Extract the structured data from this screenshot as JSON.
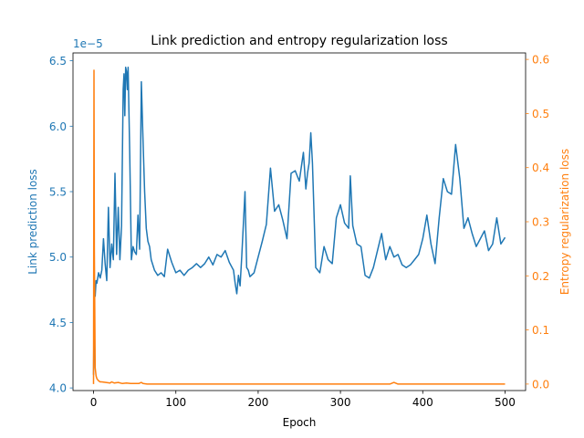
{
  "chart_data": {
    "type": "line",
    "title": "Link prediction and entropy regularization loss",
    "xlabel": "Epoch",
    "ylabel_left": "Link prediction loss",
    "ylabel_right": "Entropy regularization loss",
    "left_offset_label": "1e−5",
    "xlim": [
      -25,
      525
    ],
    "ylim_left": [
      3.98,
      6.56
    ],
    "ylim_right": [
      -0.012,
      0.612
    ],
    "xticks": [
      0,
      100,
      200,
      300,
      400,
      500
    ],
    "yticks_left": [
      4.0,
      4.5,
      5.0,
      5.5,
      6.0,
      6.5
    ],
    "yticks_left_labels": [
      "4.0",
      "4.5",
      "5.0",
      "5.5",
      "6.0",
      "6.5"
    ],
    "yticks_right": [
      0.0,
      0.1,
      0.2,
      0.3,
      0.4,
      0.5,
      0.6
    ],
    "yticks_right_labels": [
      "0.0",
      "0.1",
      "0.2",
      "0.3",
      "0.4",
      "0.5",
      "0.6"
    ],
    "grid": false,
    "colors": {
      "left": "#1f77b4",
      "right": "#ff7f0e"
    },
    "series": [
      {
        "axis": "left",
        "color": "#1f77b4",
        "x": [
          0,
          1,
          2,
          3,
          4,
          6,
          8,
          10,
          12,
          14,
          16,
          18,
          20,
          22,
          24,
          26,
          28,
          30,
          32,
          34,
          36,
          37,
          38,
          39,
          40,
          41,
          42,
          44,
          46,
          48,
          50,
          52,
          54,
          56,
          58,
          60,
          62,
          64,
          66,
          68,
          70,
          74,
          78,
          82,
          86,
          90,
          95,
          100,
          105,
          110,
          115,
          120,
          125,
          130,
          135,
          140,
          145,
          150,
          155,
          160,
          165,
          170,
          172,
          174,
          176,
          178,
          180,
          184,
          186,
          188,
          190,
          195,
          200,
          205,
          210,
          215,
          220,
          225,
          230,
          235,
          240,
          245,
          250,
          255,
          258,
          260,
          262,
          264,
          266,
          270,
          275,
          280,
          285,
          290,
          295,
          300,
          305,
          310,
          312,
          315,
          320,
          325,
          330,
          335,
          340,
          345,
          350,
          355,
          360,
          365,
          370,
          375,
          380,
          385,
          390,
          395,
          400,
          405,
          410,
          415,
          420,
          425,
          430,
          435,
          440,
          445,
          450,
          455,
          460,
          465,
          470,
          475,
          480,
          485,
          490,
          495,
          500
        ],
        "values": [
          4.1,
          4.8,
          4.7,
          4.82,
          4.8,
          4.88,
          4.84,
          4.9,
          5.14,
          4.95,
          4.82,
          5.38,
          4.92,
          5.1,
          4.98,
          5.64,
          5.02,
          5.38,
          4.98,
          5.24,
          6.28,
          6.4,
          6.08,
          6.45,
          6.42,
          6.28,
          6.45,
          5.78,
          4.98,
          5.08,
          5.04,
          5.02,
          5.32,
          5.06,
          6.34,
          5.9,
          5.5,
          5.22,
          5.12,
          5.08,
          4.98,
          4.9,
          4.86,
          4.88,
          4.85,
          5.06,
          4.96,
          4.88,
          4.9,
          4.86,
          4.9,
          4.92,
          4.95,
          4.92,
          4.95,
          5.0,
          4.94,
          5.02,
          5.0,
          5.05,
          4.96,
          4.9,
          4.8,
          4.72,
          4.86,
          4.78,
          5.0,
          5.5,
          4.92,
          4.9,
          4.85,
          4.88,
          5.0,
          5.12,
          5.25,
          5.68,
          5.35,
          5.4,
          5.28,
          5.14,
          5.64,
          5.66,
          5.58,
          5.8,
          5.52,
          5.64,
          5.72,
          5.95,
          5.72,
          4.92,
          4.88,
          5.08,
          4.98,
          4.95,
          5.3,
          5.4,
          5.26,
          5.22,
          5.62,
          5.24,
          5.1,
          5.08,
          4.86,
          4.84,
          4.92,
          5.05,
          5.18,
          4.98,
          5.08,
          5.0,
          5.02,
          4.94,
          4.92,
          4.94,
          4.98,
          5.02,
          5.14,
          5.32,
          5.1,
          4.95,
          5.3,
          5.6,
          5.5,
          5.48,
          5.86,
          5.6,
          5.22,
          5.3,
          5.18,
          5.08,
          5.14,
          5.2,
          5.05,
          5.1,
          5.3,
          5.1,
          5.15
        ]
      },
      {
        "axis": "right",
        "color": "#ff7f0e",
        "x": [
          0,
          0.5,
          1,
          2,
          3,
          4,
          6,
          8,
          10,
          15,
          20,
          22,
          25,
          30,
          35,
          40,
          45,
          50,
          55,
          58,
          60,
          65,
          80,
          100,
          150,
          200,
          250,
          300,
          350,
          360,
          365,
          370,
          400,
          450,
          500
        ],
        "values": [
          0.0,
          0.58,
          0.25,
          0.03,
          0.015,
          0.01,
          0.006,
          0.004,
          0.004,
          0.003,
          0.002,
          0.004,
          0.002,
          0.003,
          0.001,
          0.002,
          0.001,
          0.001,
          0.001,
          0.003,
          0.001,
          0.0,
          0.0,
          0.0,
          0.0,
          0.0,
          0.0,
          0.0,
          0.0,
          0.0,
          0.003,
          0.0,
          0.0,
          0.0,
          0.0
        ]
      }
    ]
  }
}
